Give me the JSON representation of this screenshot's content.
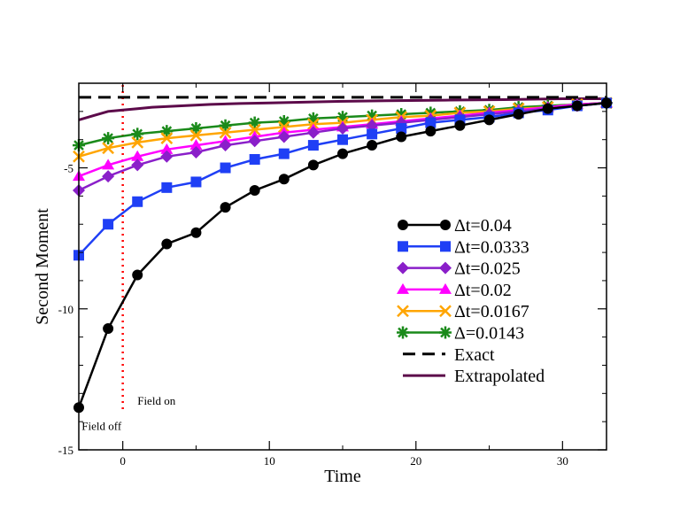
{
  "chart_data": {
    "type": "line",
    "title": "",
    "xlabel": "Time",
    "ylabel": "Second Moment",
    "xlim": [
      -3,
      33
    ],
    "ylim": [
      -15,
      -2
    ],
    "x_ticks": [
      0,
      10,
      20,
      30
    ],
    "x_tick_labels": [
      "0",
      "10",
      "20",
      "30"
    ],
    "y_ticks": [
      -5,
      -10,
      -15
    ],
    "y_tick_labels": [
      "-5",
      "-10",
      "-15"
    ],
    "grid": false,
    "legend_position": "lower-right",
    "series": [
      {
        "name": "Δt=0.04",
        "color": "#000000",
        "marker": "circle",
        "x": [
          -3,
          -1,
          1,
          3,
          5,
          7,
          9,
          11,
          13,
          15,
          17,
          19,
          21,
          23,
          25,
          27,
          29,
          31,
          33
        ],
        "y": [
          -13.5,
          -10.7,
          -8.8,
          -7.7,
          -7.3,
          -6.4,
          -5.8,
          -5.4,
          -4.9,
          -4.5,
          -4.2,
          -3.9,
          -3.7,
          -3.5,
          -3.3,
          -3.1,
          -2.9,
          -2.8,
          -2.7
        ]
      },
      {
        "name": "Δt=0.0333",
        "color": "#1f3ff5",
        "marker": "square",
        "x": [
          -3,
          -1,
          1,
          3,
          5,
          7,
          9,
          11,
          13,
          15,
          17,
          19,
          21,
          23,
          25,
          27,
          29,
          31,
          33
        ],
        "y": [
          -8.1,
          -7.0,
          -6.2,
          -5.7,
          -5.5,
          -5.0,
          -4.7,
          -4.5,
          -4.2,
          -4.0,
          -3.8,
          -3.6,
          -3.4,
          -3.3,
          -3.2,
          -3.05,
          -2.95,
          -2.8,
          -2.7
        ]
      },
      {
        "name": "Δt=0.025",
        "color": "#8a1fc9",
        "marker": "diamond",
        "x": [
          -3,
          -1,
          1,
          3,
          5,
          7,
          9,
          11,
          13,
          15,
          17,
          19,
          21,
          23,
          25,
          27,
          29,
          31,
          33
        ],
        "y": [
          -5.8,
          -5.3,
          -4.9,
          -4.6,
          -4.45,
          -4.2,
          -4.05,
          -3.9,
          -3.75,
          -3.6,
          -3.5,
          -3.4,
          -3.3,
          -3.2,
          -3.1,
          -3.0,
          -2.9,
          -2.8,
          -2.7
        ]
      },
      {
        "name": "Δt=0.02",
        "color": "#ff00ff",
        "marker": "triangle",
        "x": [
          -3,
          -1,
          1,
          3,
          5,
          7,
          9,
          11,
          13,
          15,
          17,
          19,
          21,
          23,
          25,
          27,
          29,
          31,
          33
        ],
        "y": [
          -5.3,
          -4.9,
          -4.6,
          -4.35,
          -4.2,
          -4.05,
          -3.9,
          -3.75,
          -3.65,
          -3.55,
          -3.45,
          -3.35,
          -3.25,
          -3.15,
          -3.05,
          -2.95,
          -2.85,
          -2.75,
          -2.7
        ]
      },
      {
        "name": "Δt=0.0167",
        "color": "#ffa500",
        "marker": "x",
        "x": [
          -3,
          -1,
          1,
          3,
          5,
          7,
          9,
          11,
          13,
          15,
          17,
          19,
          21,
          23,
          25,
          27,
          29,
          31,
          33
        ],
        "y": [
          -4.6,
          -4.3,
          -4.1,
          -3.95,
          -3.85,
          -3.75,
          -3.65,
          -3.55,
          -3.45,
          -3.4,
          -3.3,
          -3.2,
          -3.15,
          -3.05,
          -3.0,
          -2.9,
          -2.85,
          -2.75,
          -2.7
        ]
      },
      {
        "name": "Δ=0.0143",
        "color": "#1a8a1a",
        "marker": "asterisk",
        "x": [
          -3,
          -1,
          1,
          3,
          5,
          7,
          9,
          11,
          13,
          15,
          17,
          19,
          21,
          23,
          25,
          27,
          29,
          31,
          33
        ],
        "y": [
          -4.2,
          -3.95,
          -3.8,
          -3.7,
          -3.6,
          -3.5,
          -3.4,
          -3.35,
          -3.25,
          -3.2,
          -3.15,
          -3.1,
          -3.05,
          -3.0,
          -2.95,
          -2.85,
          -2.8,
          -2.75,
          -2.7
        ]
      },
      {
        "name": "Exact",
        "color": "#000000",
        "marker": "none",
        "dash": true,
        "x": [
          -3,
          33
        ],
        "y": [
          -2.5,
          -2.5
        ]
      },
      {
        "name": "Extrapolated",
        "color": "#5c0a4a",
        "marker": "none",
        "x": [
          -3,
          -2,
          -1,
          0,
          1,
          2,
          4,
          6,
          8,
          10,
          14,
          18,
          22,
          26,
          30,
          33
        ],
        "y": [
          -3.3,
          -3.15,
          -3.0,
          -2.95,
          -2.9,
          -2.85,
          -2.8,
          -2.75,
          -2.72,
          -2.7,
          -2.65,
          -2.62,
          -2.6,
          -2.58,
          -2.55,
          -2.55
        ]
      }
    ],
    "vertical_marker": {
      "x": 0,
      "color": "#ff0000",
      "style": "dotted"
    },
    "annotations": [
      {
        "text": "Field on",
        "x": 1,
        "y": -13.4
      },
      {
        "text": "Field off",
        "x": -2.8,
        "y": -14.3
      }
    ]
  }
}
